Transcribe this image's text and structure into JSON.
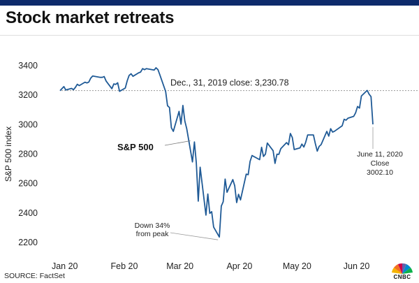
{
  "header": {
    "title": "Stock market retreats"
  },
  "footer": {
    "source": "SOURCE: FactSet",
    "logo_text": "CNBC"
  },
  "colors": {
    "line": "#1f5a96",
    "topbar": "#0d2a6b",
    "reference": "#9a9a9a"
  },
  "chart_data": {
    "type": "line",
    "title": "Stock market retreats",
    "xlabel": "",
    "ylabel": "S&P 500 index",
    "ylim": [
      2150,
      3480
    ],
    "yticks": [
      2200,
      2400,
      2600,
      2800,
      3000,
      3200,
      3400
    ],
    "ytick_labels": [
      "2200",
      "2400",
      "2600",
      "2800",
      "3000",
      "3200",
      "3400"
    ],
    "xticks": [
      "2020-01-01",
      "2020-02-01",
      "2020-03-01",
      "2020-04-01",
      "2020-05-01",
      "2020-06-01"
    ],
    "xtick_labels": [
      "Jan 20",
      "Feb 20",
      "Mar 20",
      "Apr 20",
      "May 20",
      "Jun 20"
    ],
    "xlim": [
      "2019-12-31",
      "2020-06-15"
    ],
    "grid": false,
    "series": [
      {
        "name": "S&P 500",
        "points": [
          [
            "2019-12-31",
            3230.78
          ],
          [
            "2020-01-02",
            3258
          ],
          [
            "2020-01-03",
            3235
          ],
          [
            "2020-01-06",
            3246
          ],
          [
            "2020-01-07",
            3237
          ],
          [
            "2020-01-08",
            3253
          ],
          [
            "2020-01-09",
            3274
          ],
          [
            "2020-01-10",
            3265
          ],
          [
            "2020-01-13",
            3288
          ],
          [
            "2020-01-14",
            3283
          ],
          [
            "2020-01-15",
            3289
          ],
          [
            "2020-01-16",
            3316
          ],
          [
            "2020-01-17",
            3330
          ],
          [
            "2020-01-21",
            3321
          ],
          [
            "2020-01-22",
            3321
          ],
          [
            "2020-01-23",
            3326
          ],
          [
            "2020-01-24",
            3295
          ],
          [
            "2020-01-27",
            3244
          ],
          [
            "2020-01-28",
            3276
          ],
          [
            "2020-01-29",
            3273
          ],
          [
            "2020-01-30",
            3284
          ],
          [
            "2020-01-31",
            3226
          ],
          [
            "2020-02-03",
            3248
          ],
          [
            "2020-02-04",
            3298
          ],
          [
            "2020-02-05",
            3334
          ],
          [
            "2020-02-06",
            3345
          ],
          [
            "2020-02-07",
            3328
          ],
          [
            "2020-02-10",
            3352
          ],
          [
            "2020-02-11",
            3357
          ],
          [
            "2020-02-12",
            3380
          ],
          [
            "2020-02-13",
            3373
          ],
          [
            "2020-02-14",
            3380
          ],
          [
            "2020-02-18",
            3370
          ],
          [
            "2020-02-19",
            3386
          ],
          [
            "2020-02-20",
            3373
          ],
          [
            "2020-02-21",
            3338
          ],
          [
            "2020-02-24",
            3225
          ],
          [
            "2020-02-25",
            3128
          ],
          [
            "2020-02-26",
            3116
          ],
          [
            "2020-02-27",
            2979
          ],
          [
            "2020-02-28",
            2954
          ],
          [
            "2020-03-02",
            3090
          ],
          [
            "2020-03-03",
            3003
          ],
          [
            "2020-03-04",
            3130
          ],
          [
            "2020-03-05",
            3024
          ],
          [
            "2020-03-06",
            2972
          ],
          [
            "2020-03-09",
            2747
          ],
          [
            "2020-03-10",
            2882
          ],
          [
            "2020-03-11",
            2741
          ],
          [
            "2020-03-12",
            2481
          ],
          [
            "2020-03-13",
            2711
          ],
          [
            "2020-03-16",
            2386
          ],
          [
            "2020-03-17",
            2529
          ],
          [
            "2020-03-18",
            2398
          ],
          [
            "2020-03-19",
            2409
          ],
          [
            "2020-03-20",
            2305
          ],
          [
            "2020-03-23",
            2237
          ],
          [
            "2020-03-24",
            2447
          ],
          [
            "2020-03-25",
            2476
          ],
          [
            "2020-03-26",
            2630
          ],
          [
            "2020-03-27",
            2541
          ],
          [
            "2020-03-30",
            2627
          ],
          [
            "2020-03-31",
            2585
          ],
          [
            "2020-04-01",
            2471
          ],
          [
            "2020-04-02",
            2527
          ],
          [
            "2020-04-03",
            2489
          ],
          [
            "2020-04-06",
            2664
          ],
          [
            "2020-04-07",
            2660
          ],
          [
            "2020-04-08",
            2750
          ],
          [
            "2020-04-09",
            2790
          ],
          [
            "2020-04-13",
            2762
          ],
          [
            "2020-04-14",
            2846
          ],
          [
            "2020-04-15",
            2784
          ],
          [
            "2020-04-16",
            2800
          ],
          [
            "2020-04-17",
            2875
          ],
          [
            "2020-04-20",
            2823
          ],
          [
            "2020-04-21",
            2737
          ],
          [
            "2020-04-22",
            2799
          ],
          [
            "2020-04-23",
            2798
          ],
          [
            "2020-04-24",
            2837
          ],
          [
            "2020-04-27",
            2878
          ],
          [
            "2020-04-28",
            2863
          ],
          [
            "2020-04-29",
            2940
          ],
          [
            "2020-04-30",
            2912
          ],
          [
            "2020-05-01",
            2831
          ],
          [
            "2020-05-04",
            2842
          ],
          [
            "2020-05-05",
            2868
          ],
          [
            "2020-05-06",
            2848
          ],
          [
            "2020-05-07",
            2881
          ],
          [
            "2020-05-08",
            2930
          ],
          [
            "2020-05-11",
            2930
          ],
          [
            "2020-05-12",
            2870
          ],
          [
            "2020-05-13",
            2820
          ],
          [
            "2020-05-14",
            2852
          ],
          [
            "2020-05-15",
            2864
          ],
          [
            "2020-05-18",
            2954
          ],
          [
            "2020-05-19",
            2922
          ],
          [
            "2020-05-20",
            2972
          ],
          [
            "2020-05-21",
            2949
          ],
          [
            "2020-05-22",
            2955
          ],
          [
            "2020-05-26",
            2992
          ],
          [
            "2020-05-27",
            3036
          ],
          [
            "2020-05-28",
            3030
          ],
          [
            "2020-05-29",
            3044
          ],
          [
            "2020-06-01",
            3056
          ],
          [
            "2020-06-02",
            3081
          ],
          [
            "2020-06-03",
            3123
          ],
          [
            "2020-06-04",
            3112
          ],
          [
            "2020-06-05",
            3194
          ],
          [
            "2020-06-08",
            3232
          ],
          [
            "2020-06-09",
            3207
          ],
          [
            "2020-06-10",
            3190
          ],
          [
            "2020-06-11",
            3002.1
          ]
        ]
      }
    ],
    "reference_line": {
      "value": 3230.78,
      "label": "Dec., 31, 2019 close:  3,230.78"
    },
    "annotations": {
      "series_label": {
        "text": "S&P 500",
        "at": [
          "2020-03-05",
          2985
        ]
      },
      "trough": {
        "lines": [
          "Down 34%",
          "from peak"
        ],
        "at": [
          "2020-03-23",
          2237
        ]
      },
      "last": {
        "lines": [
          "June 11, 2020",
          "Close",
          "3002.10"
        ],
        "at": [
          "2020-06-11",
          3002.1
        ]
      }
    }
  }
}
